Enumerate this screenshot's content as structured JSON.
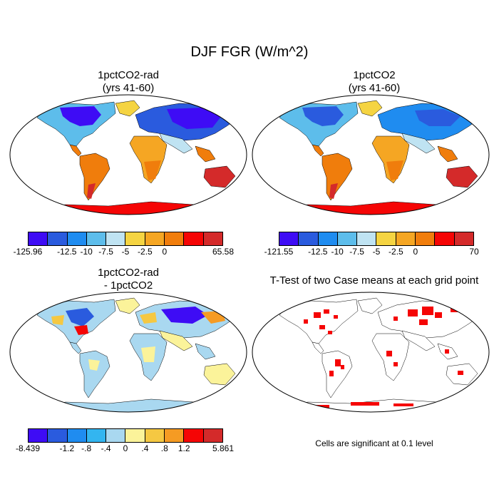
{
  "title": "DJF FGR (W/m^2)",
  "panels": [
    {
      "title_l1": "1pctCO2-rad",
      "title_l2": "(yrs 41-60)"
    },
    {
      "title_l1": "1pctCO2",
      "title_l2": "(yrs 41-60)"
    },
    {
      "title_l1": "1pctCO2-rad",
      "title_l2": "- 1pctCO2"
    },
    {
      "title_l1": "T-Test of two Case means at each grid point",
      "title_l2": ""
    }
  ],
  "colorbars": [
    {
      "colors": [
        "#3e0cf5",
        "#2a5bde",
        "#1f8cf0",
        "#5dbdeb",
        "#bfe3f2",
        "#f5d442",
        "#f5a623",
        "#f07d0c",
        "#f50505",
        "#d42a2a"
      ],
      "labels": [
        "-125.96",
        "-12.5",
        "-10",
        "-7.5",
        "-5",
        "-2.5",
        "0",
        "65.58"
      ],
      "label_positions": [
        0,
        2,
        3,
        4,
        5,
        6,
        7,
        10
      ]
    },
    {
      "colors": [
        "#3e0cf5",
        "#2a5bde",
        "#1f8cf0",
        "#5dbdeb",
        "#bfe3f2",
        "#f5d442",
        "#f5a623",
        "#f07d0c",
        "#f50505",
        "#d42a2a"
      ],
      "labels": [
        "-121.55",
        "-12.5",
        "-10",
        "-7.5",
        "-5",
        "-2.5",
        "0",
        "70"
      ],
      "label_positions": [
        0,
        2,
        3,
        4,
        5,
        6,
        7,
        10
      ]
    },
    {
      "colors": [
        "#3e0cf5",
        "#2a5bde",
        "#1f8cf0",
        "#33b5f0",
        "#a9d8f0",
        "#fbf39a",
        "#f5c842",
        "#f59b23",
        "#f50505",
        "#d42a2a"
      ],
      "labels": [
        "-8.439",
        "-1.2",
        "-.8",
        "-.4",
        "0",
        ".4",
        ".8",
        "1.2",
        "5.861"
      ],
      "label_positions": [
        0,
        2,
        3,
        4,
        5,
        6,
        7,
        8,
        10
      ]
    }
  ],
  "note": "Cells are significant at 0.1 level"
}
